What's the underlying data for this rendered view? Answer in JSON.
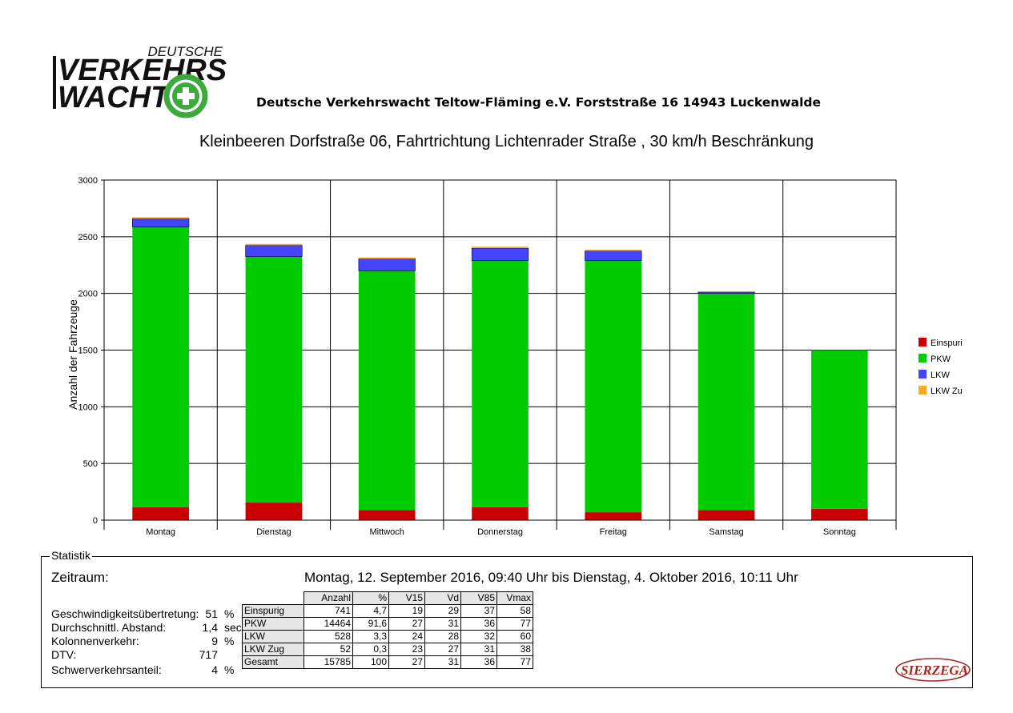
{
  "header": {
    "logo_line1": "DEUTSCHE",
    "logo_line2": "VERKEHRS",
    "logo_line3": "WACHT",
    "organization": "Deutsche Verkehrswacht Teltow-Fläming e.V.  Forststraße 16  14943 Luckenwalde"
  },
  "chart_data": {
    "type": "bar",
    "stacked": true,
    "title": "Kleinbeeren Dorfstraße 06,  Fahrtrichtung Lichtenrader Straße , 30 km/h Beschränkung",
    "xlabel": "",
    "ylabel": "Anzahl der Fahrzeuge",
    "ylim": [
      0,
      3000
    ],
    "yticks": [
      0,
      500,
      1000,
      1500,
      2000,
      2500,
      3000
    ],
    "grid": true,
    "legend_position": "right",
    "categories": [
      "Montag",
      "Dienstag",
      "Mittwoch",
      "Donnerstag",
      "Freitag",
      "Samstag",
      "Sonntag"
    ],
    "series": [
      {
        "name": "Einspuri",
        "color": "#cc0000",
        "values": [
          115,
          155,
          90,
          115,
          70,
          90,
          100
        ]
      },
      {
        "name": "PKW",
        "color": "#00cc00",
        "values": [
          2470,
          2170,
          2110,
          2175,
          2220,
          1910,
          1400
        ]
      },
      {
        "name": "LKW",
        "color": "#4444ff",
        "values": [
          75,
          100,
          105,
          110,
          85,
          12,
          0
        ]
      },
      {
        "name": "LKW Zu",
        "color": "#ffaa22",
        "values": [
          12,
          12,
          12,
          12,
          10,
          0,
          0
        ]
      }
    ]
  },
  "statistik": {
    "label": "Statistik",
    "zeitraum_label": "Zeitraum:",
    "zeitraum_value": "Montag, 12. September 2016, 09:40 Uhr bis Dienstag, 4. Oktober 2016, 10:11 Uhr",
    "metrics": [
      {
        "label": "Geschwindigkeitsübertretung:",
        "value": "51",
        "unit": "%"
      },
      {
        "label": "Durchschnittl. Abstand:",
        "value": "1,4",
        "unit": "sec"
      },
      {
        "label": "Kolonnenverkehr:",
        "value": "9",
        "unit": "%"
      },
      {
        "label": "DTV:",
        "value": "717",
        "unit": ""
      },
      {
        "label": "Schwerverkehrsanteil:",
        "value": "4",
        "unit": "%"
      }
    ],
    "table": {
      "headers": [
        "Anzahl",
        "%",
        "V15",
        "Vd",
        "V85",
        "Vmax"
      ],
      "rows": [
        {
          "label": "Einspurig",
          "cells": [
            "741",
            "4,7",
            "19",
            "29",
            "37",
            "58"
          ]
        },
        {
          "label": "PKW",
          "cells": [
            "14464",
            "91,6",
            "27",
            "31",
            "36",
            "77"
          ]
        },
        {
          "label": "LKW",
          "cells": [
            "528",
            "3,3",
            "24",
            "28",
            "32",
            "60"
          ]
        },
        {
          "label": "LKW Zug",
          "cells": [
            "52",
            "0,3",
            "23",
            "27",
            "31",
            "38"
          ]
        },
        {
          "label": "Gesamt",
          "cells": [
            "15785",
            "100",
            "27",
            "31",
            "36",
            "77"
          ]
        }
      ]
    }
  },
  "footer": {
    "brand": "SIERZEGA",
    "brand_color": "#a0281e"
  }
}
